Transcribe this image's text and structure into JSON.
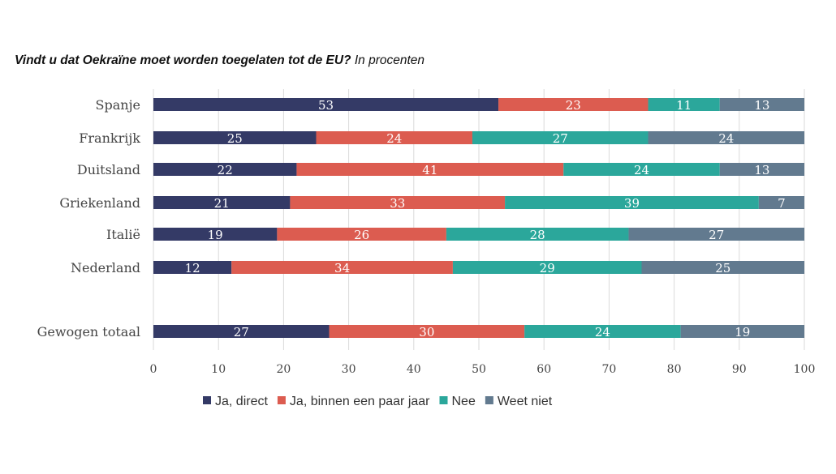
{
  "chart_data": {
    "type": "bar",
    "orientation": "horizontal",
    "stacked": true,
    "title": "Vindt u dat Oekraïne moet worden toegelaten tot de EU?",
    "subtitle": "In procenten",
    "categories": [
      "Spanje",
      "Frankrijk",
      "Duitsland",
      "Griekenland",
      "Italië",
      "Nederland",
      "Gewogen totaal"
    ],
    "series": [
      {
        "name": "Ja, direct",
        "color": "#343a66",
        "values": [
          53,
          25,
          22,
          21,
          19,
          12,
          27
        ]
      },
      {
        "name": "Ja, binnen een paar jaar",
        "color": "#dc5c50",
        "values": [
          23,
          24,
          41,
          33,
          26,
          34,
          30
        ]
      },
      {
        "name": "Nee",
        "color": "#2ba79b",
        "values": [
          11,
          27,
          24,
          39,
          28,
          29,
          24
        ]
      },
      {
        "name": "Weet niet",
        "color": "#627a8f",
        "values": [
          13,
          24,
          13,
          7,
          27,
          25,
          19
        ]
      }
    ],
    "xlim": [
      0,
      100
    ],
    "xticks": [
      "0",
      "10",
      "20",
      "30",
      "40",
      "50",
      "60",
      "70",
      "80",
      "90",
      "100"
    ],
    "xlabel": "",
    "ylabel": "",
    "grid": true,
    "legend": "bottom"
  }
}
